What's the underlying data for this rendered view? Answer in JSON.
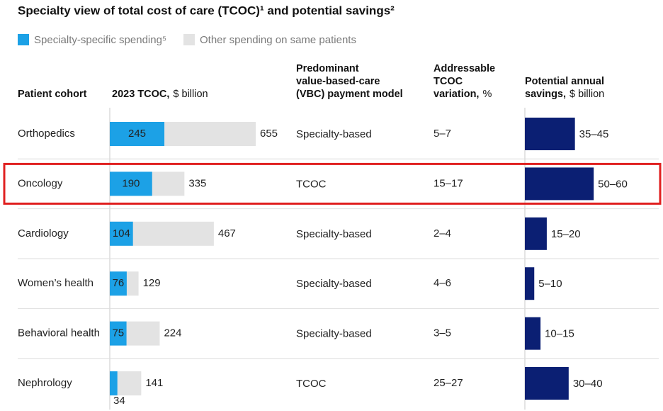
{
  "chart_data": {
    "type": "table-bars",
    "title": "Specialty view of total cost of care (TCOC)¹ and potential savings²",
    "legend": [
      {
        "label": "Specialty-specific spending⁵",
        "color": "#1ca1e6"
      },
      {
        "label": "Other spending on same patients",
        "color": "#e3e3e3"
      }
    ],
    "columns": [
      [
        [
          {
            "text": "Patient cohort",
            "bold": true
          }
        ]
      ],
      [
        [
          {
            "text": "2023 TCOC,",
            "bold": true
          },
          {
            "text": "$ billion",
            "bold": false
          }
        ]
      ],
      [
        [
          {
            "text": "Predominant",
            "bold": true
          }
        ],
        [
          {
            "text": "value-based-care",
            "bold": true
          }
        ],
        [
          {
            "text": "(VBC) payment model",
            "bold": true
          }
        ]
      ],
      [
        [
          {
            "text": "Addressable",
            "bold": true
          }
        ],
        [
          {
            "text": "TCOC",
            "bold": true
          }
        ],
        [
          {
            "text": "variation,",
            "bold": true
          },
          {
            "text": "%",
            "bold": false
          }
        ]
      ],
      [
        [
          {
            "text": "Potential annual",
            "bold": true
          }
        ],
        [
          {
            "text": "savings,",
            "bold": true
          },
          {
            "text": "$ billion",
            "bold": false
          }
        ]
      ]
    ],
    "savings_color": "#0b1f73",
    "highlight_color": "#e02020",
    "rows": [
      {
        "cohort": "Orthopedics",
        "specialty_spend": 245,
        "total_spend": 655,
        "model": "Specialty-based",
        "variation": "5–7",
        "savings": {
          "low": 35,
          "high": 45,
          "label": "35–45"
        }
      },
      {
        "cohort": "Oncology",
        "specialty_spend": 190,
        "total_spend": 335,
        "model": "TCOC",
        "variation": "15–17",
        "savings": {
          "low": 50,
          "high": 60,
          "label": "50–60"
        },
        "highlighted": true
      },
      {
        "cohort": "Cardiology",
        "specialty_spend": 104,
        "total_spend": 467,
        "model": "Specialty-based",
        "variation": "2–4",
        "savings": {
          "low": 15,
          "high": 20,
          "label": "15–20"
        }
      },
      {
        "cohort": "Women’s health",
        "specialty_spend": 76,
        "total_spend": 129,
        "model": "Specialty-based",
        "variation": "4–6",
        "savings": {
          "low": 5,
          "high": 10,
          "label": "5–10"
        }
      },
      {
        "cohort": "Behavioral health",
        "specialty_spend": 75,
        "total_spend": 224,
        "model": "Specialty-based",
        "variation": "3–5",
        "savings": {
          "low": 10,
          "high": 15,
          "label": "10–15"
        }
      },
      {
        "cohort": "Nephrology",
        "specialty_spend": 34,
        "total_spend": 141,
        "model": "TCOC",
        "variation": "25–27",
        "savings": {
          "low": 30,
          "high": 40,
          "label": "30–40"
        }
      }
    ]
  }
}
